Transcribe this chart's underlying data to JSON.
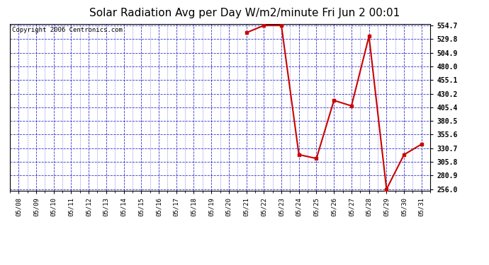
{
  "title": "Solar Radiation Avg per Day W/m2/minute Fri Jun 2 00:01",
  "copyright": "Copyright 2006 Centronics.com",
  "x_labels": [
    "05/08",
    "05/09",
    "05/10",
    "05/11",
    "05/12",
    "05/13",
    "05/14",
    "05/15",
    "05/16",
    "05/17",
    "05/18",
    "05/19",
    "05/20",
    "05/21",
    "05/22",
    "05/23",
    "05/24",
    "05/25",
    "05/26",
    "05/27",
    "05/28",
    "05/29",
    "05/30",
    "05/31"
  ],
  "data_points": {
    "05/21": 541.5,
    "05/22": 554.7,
    "05/23": 554.7,
    "05/24": 319.0,
    "05/25": 312.0,
    "05/26": 418.0,
    "05/27": 408.0,
    "05/28": 535.0,
    "05/29": 256.0,
    "05/30": 319.0,
    "05/31": 338.0
  },
  "y_ticks": [
    256.0,
    280.9,
    305.8,
    330.7,
    355.6,
    380.5,
    405.4,
    430.2,
    455.1,
    480.0,
    504.9,
    529.8,
    554.7
  ],
  "y_min": 256.0,
  "y_max": 554.7,
  "line_color": "#cc0000",
  "marker_color": "#cc0000",
  "bg_color": "#ffffff",
  "plot_bg_color": "#ffffff",
  "grid_color": "#0000bb",
  "title_fontsize": 11,
  "copyright_fontsize": 6.5
}
